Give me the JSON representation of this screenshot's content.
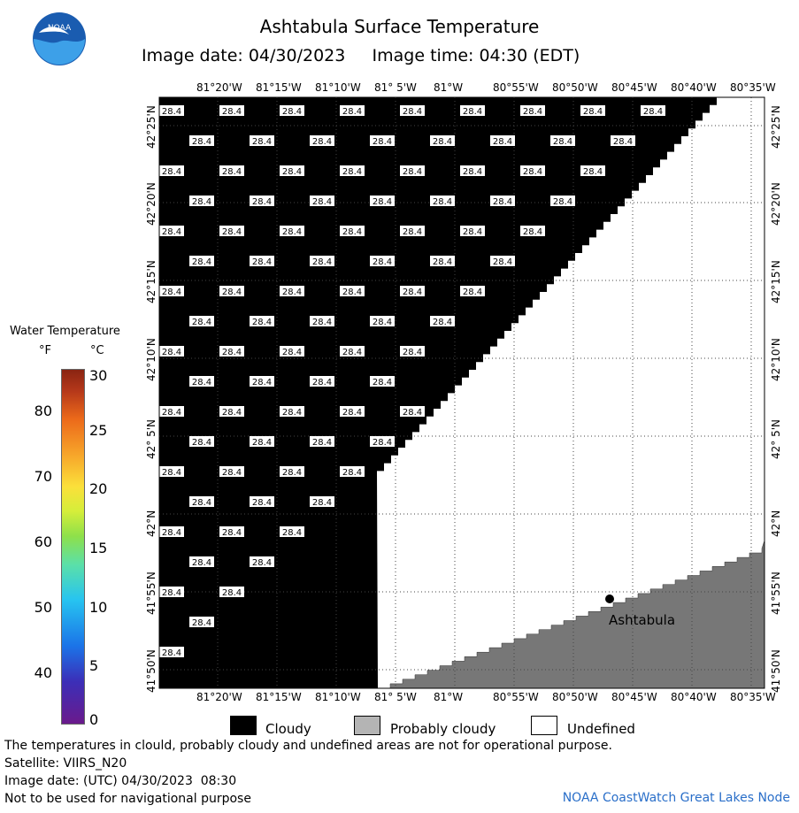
{
  "title": "Ashtabula Surface Temperature",
  "image_date_label": "Image date: 04/30/2023",
  "image_time_label": "Image time: 04:30 (EDT)",
  "logo_text": "NOAA",
  "longitude_labels": [
    "81°20'W",
    "81°15'W",
    "81°10'W",
    "81° 5'W",
    "81°W",
    "80°55'W",
    "80°50'W",
    "80°45'W",
    "80°40'W",
    "80°35'W"
  ],
  "latitude_labels": [
    "42°25'N",
    "42°20'N",
    "42°15'N",
    "42°10'N",
    "42° 5'N",
    "42°N",
    "41°55'N",
    "41°50'N"
  ],
  "cloud_temp_value": "28.4",
  "place_label": "Ashtabula",
  "legend": {
    "title": "Water Temperature",
    "unit_f": "°F",
    "unit_c": "°C",
    "f_ticks": [
      "80",
      "70",
      "60",
      "50",
      "40"
    ],
    "c_ticks": [
      "30",
      "25",
      "20",
      "15",
      "10",
      "5",
      "0"
    ]
  },
  "key": [
    {
      "label": "Cloudy",
      "color": "#000000"
    },
    {
      "label": "Probably cloudy",
      "color": "#b4b4b4"
    },
    {
      "label": "Undefined",
      "color": "#ffffff"
    }
  ],
  "land_color": "#777777",
  "footer": {
    "line1": "The temperatures in clould, probably cloudy and undefined areas are not for operational purpose.",
    "line2": "Satellite: VIIRS_N20",
    "line3": "Image date: (UTC) 04/30/2023  08:30",
    "line4": "Not to be used for navigational purpose",
    "credit": "NOAA CoastWatch Great Lakes Node"
  }
}
